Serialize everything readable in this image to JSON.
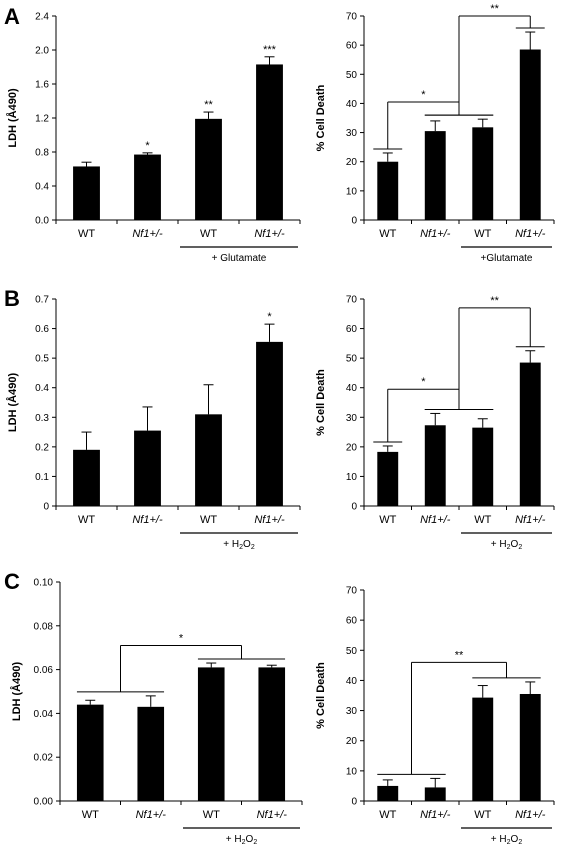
{
  "panels": [
    {
      "letter": "A"
    },
    {
      "letter": "B"
    },
    {
      "letter": "C"
    }
  ],
  "chart_data": [
    {
      "id": "A-left",
      "panel": "A",
      "type": "bar",
      "ylabel": "LDH (Å490)",
      "ylim": [
        0,
        2.4
      ],
      "yticks": [
        "0.0",
        "0.4",
        "0.8",
        "1.2",
        "1.6",
        "2.0",
        "2.4"
      ],
      "categories": [
        "WT",
        "Nf1+/-",
        "WT",
        "Nf1+/-"
      ],
      "italic": [
        false,
        true,
        false,
        true
      ],
      "values": [
        0.63,
        0.77,
        1.19,
        1.83
      ],
      "errors": [
        0.05,
        0.02,
        0.08,
        0.09
      ],
      "bar_labels": [
        "",
        "*",
        "**",
        "***"
      ],
      "group_label": {
        "text": "+ Glutamate",
        "sub": ""
      },
      "brackets": [],
      "grid": false
    },
    {
      "id": "A-right",
      "panel": "A",
      "type": "bar",
      "ylabel": "% Cell Death",
      "ylim": [
        0,
        70
      ],
      "yticks": [
        "0",
        "10",
        "20",
        "30",
        "40",
        "50",
        "60",
        "70"
      ],
      "categories": [
        "WT",
        "Nf1+/-",
        "WT",
        "Nf1+/-"
      ],
      "italic": [
        false,
        true,
        false,
        true
      ],
      "values": [
        20,
        30.5,
        31.8,
        58.5
      ],
      "errors": [
        3,
        3.5,
        2.8,
        6
      ],
      "bar_labels": [
        "",
        "",
        "",
        ""
      ],
      "group_label": {
        "text": "+Glutamate",
        "sub": ""
      },
      "brackets": [
        {
          "from": [
            0
          ],
          "to": [
            1,
            2
          ],
          "y": 40.5,
          "label": "*"
        },
        {
          "from": [
            1,
            2
          ],
          "to": [
            3
          ],
          "y": 70,
          "label": "**"
        }
      ],
      "grid": false
    },
    {
      "id": "B-left",
      "panel": "B",
      "type": "bar",
      "ylabel": "LDH (Å490)",
      "ylim": [
        0,
        0.7
      ],
      "yticks": [
        "0",
        "0.1",
        "0.2",
        "0.3",
        "0.4",
        "0.5",
        "0.6",
        "0.7"
      ],
      "categories": [
        "WT",
        "Nf1+/-",
        "WT",
        "Nf1+/-"
      ],
      "italic": [
        false,
        true,
        false,
        true
      ],
      "values": [
        0.19,
        0.255,
        0.31,
        0.555
      ],
      "errors": [
        0.06,
        0.08,
        0.1,
        0.06
      ],
      "bar_labels": [
        "",
        "",
        "",
        "*"
      ],
      "group_label": {
        "text": "+ H",
        "sub": "2",
        "text2": "O",
        "sub2": "2"
      },
      "brackets": [],
      "grid": false
    },
    {
      "id": "B-right",
      "panel": "B",
      "type": "bar",
      "ylabel": "% Cell Death",
      "ylim": [
        0,
        70
      ],
      "yticks": [
        "0",
        "10",
        "20",
        "30",
        "40",
        "50",
        "60",
        "70"
      ],
      "categories": [
        "WT",
        "Nf1+/-",
        "WT",
        "Nf1+/-"
      ],
      "italic": [
        false,
        true,
        false,
        true
      ],
      "values": [
        18.3,
        27.3,
        26.5,
        48.5
      ],
      "errors": [
        2,
        4,
        3,
        4
      ],
      "bar_labels": [
        "",
        "",
        "",
        ""
      ],
      "group_label": {
        "text": "+ H",
        "sub": "2",
        "text2": "O",
        "sub2": "2"
      },
      "brackets": [
        {
          "from": [
            0
          ],
          "to": [
            1,
            2
          ],
          "y": 39.5,
          "label": "*"
        },
        {
          "from": [
            1,
            2
          ],
          "to": [
            3
          ],
          "y": 67,
          "label": "**"
        }
      ],
      "grid": false
    },
    {
      "id": "C-left",
      "panel": "C",
      "type": "bar",
      "ylabel": "LDH (Å490)",
      "ylim": [
        0,
        0.1
      ],
      "yticks": [
        "0.00",
        "0.02",
        "0.04",
        "0.06",
        "0.08",
        "0.10"
      ],
      "categories": [
        "WT",
        "Nf1+/-",
        "WT",
        "Nf1+/-"
      ],
      "italic": [
        false,
        true,
        false,
        true
      ],
      "values": [
        0.044,
        0.043,
        0.061,
        0.061
      ],
      "errors": [
        0.002,
        0.005,
        0.002,
        0.001
      ],
      "bar_labels": [
        "",
        "",
        "",
        ""
      ],
      "group_label": {
        "text": "+ H",
        "sub": "2",
        "text2": "O",
        "sub2": "2"
      },
      "brackets": [
        {
          "from": [
            0,
            1
          ],
          "to": [
            2,
            3
          ],
          "y": 0.071,
          "label": "*"
        }
      ],
      "grid": false
    },
    {
      "id": "C-right",
      "panel": "C",
      "type": "bar",
      "ylabel": "% Cell Death",
      "ylim": [
        0,
        70
      ],
      "yticks": [
        "0",
        "10",
        "20",
        "30",
        "40",
        "50",
        "60",
        "70"
      ],
      "categories": [
        "WT",
        "Nf1+/-",
        "WT",
        "Nf1+/-"
      ],
      "italic": [
        false,
        true,
        false,
        true
      ],
      "values": [
        5,
        4.5,
        34.3,
        35.5
      ],
      "errors": [
        2,
        3,
        4,
        4
      ],
      "bar_labels": [
        "",
        "",
        "",
        ""
      ],
      "group_label": {
        "text": "+ H",
        "sub": "2",
        "text2": "O",
        "sub2": "2"
      },
      "brackets": [
        {
          "from": [
            0,
            1
          ],
          "to": [
            2,
            3
          ],
          "y": 46,
          "label": "**"
        }
      ],
      "grid": false
    }
  ]
}
